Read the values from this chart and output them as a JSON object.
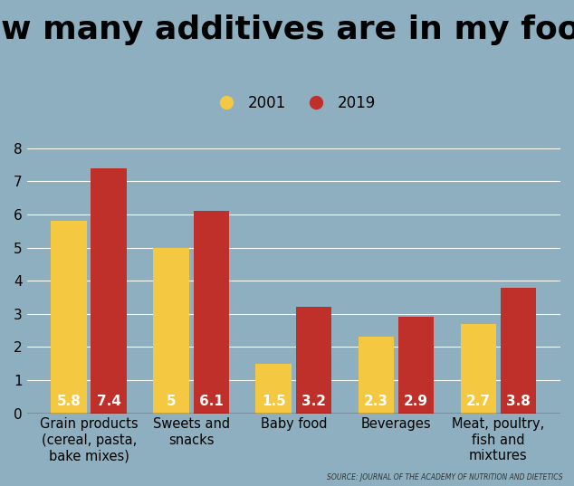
{
  "title": "How many additives are in my food?",
  "categories": [
    "Grain products\n(cereal, pasta,\nbake mixes)",
    "Sweets and\nsnacks",
    "Baby food",
    "Beverages",
    "Meat, poultry,\nfish and\nmixtures"
  ],
  "values_2001": [
    5.8,
    5.0,
    1.5,
    2.3,
    2.7
  ],
  "values_2019": [
    7.4,
    6.1,
    3.2,
    2.9,
    3.8
  ],
  "labels_2001": [
    "5.8",
    "5",
    "1.5",
    "2.3",
    "2.7"
  ],
  "labels_2019": [
    "7.4",
    "6.1",
    "3.2",
    "2.9",
    "3.8"
  ],
  "color_2001": "#F5C842",
  "color_2019": "#C0302A",
  "background_color": "#8DAFC0",
  "title_fontsize": 26,
  "bar_label_fontsize": 11,
  "ylim": [
    0,
    8.5
  ],
  "yticks": [
    0,
    1,
    2,
    3,
    4,
    5,
    6,
    7,
    8
  ],
  "source_text": "SOURCE: JOURNAL OF THE ACADEMY OF NUTRITION AND DIETETICS",
  "legend_2001": "2001",
  "legend_2019": "2019"
}
